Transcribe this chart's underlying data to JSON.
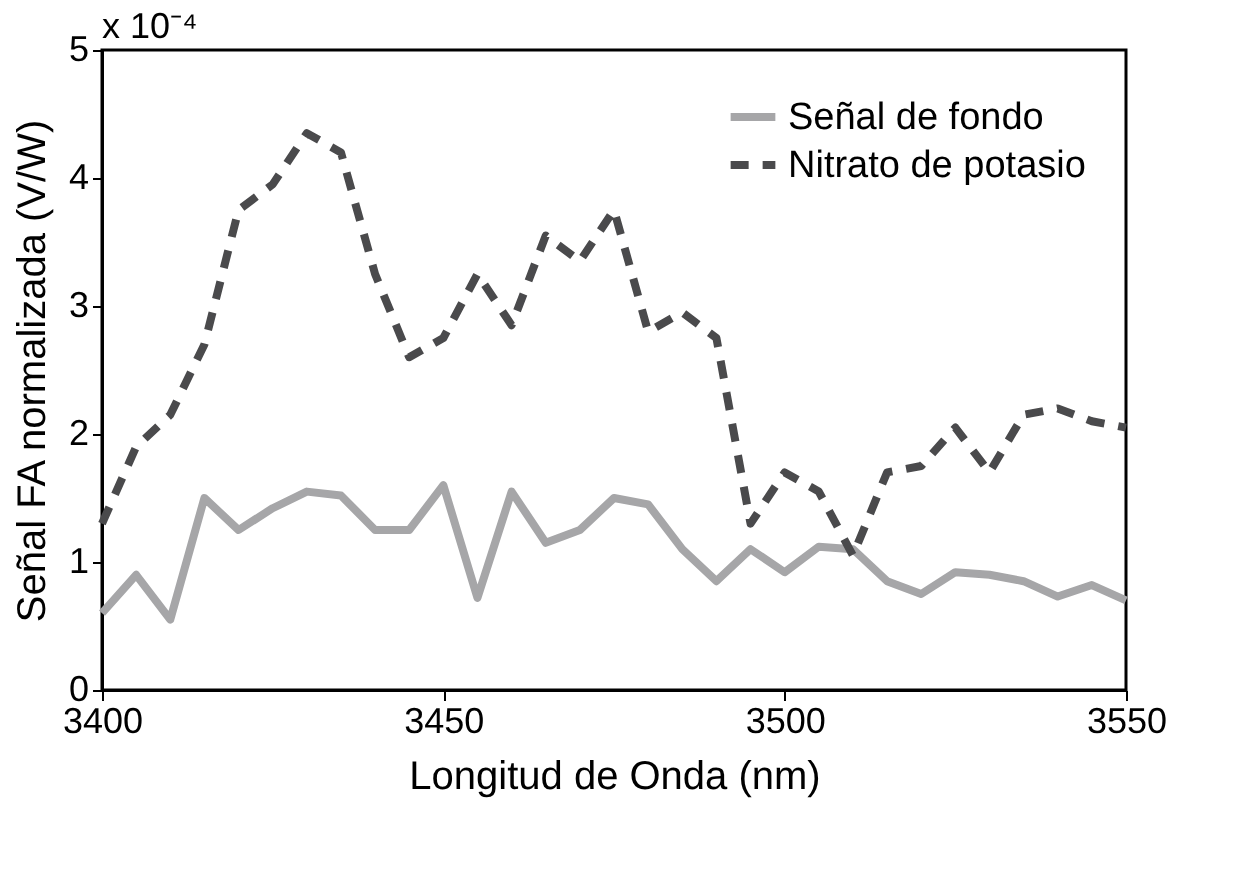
{
  "chart_data": {
    "type": "line",
    "xlabel": "Longitud de Onda (nm)",
    "ylabel": "Señal FA normalizada (V/W)",
    "annotations": [
      "x 10⁻⁴"
    ],
    "x": [
      3400,
      3405,
      3410,
      3415,
      3420,
      3425,
      3430,
      3435,
      3440,
      3445,
      3450,
      3455,
      3460,
      3465,
      3470,
      3475,
      3480,
      3485,
      3490,
      3495,
      3500,
      3505,
      3510,
      3515,
      3520,
      3525,
      3530,
      3535,
      3540,
      3545,
      3550
    ],
    "series": [
      {
        "name": "Señal de fondo",
        "color": "#a6a6a8",
        "line_style": "solid",
        "values": [
          0.6,
          0.9,
          0.55,
          1.5,
          1.25,
          1.42,
          1.55,
          1.52,
          1.25,
          1.25,
          1.6,
          0.72,
          1.55,
          1.15,
          1.25,
          1.5,
          1.45,
          1.1,
          0.85,
          1.1,
          0.92,
          1.12,
          1.1,
          0.85,
          0.75,
          0.92,
          0.9,
          0.85,
          0.73,
          0.82,
          0.7
        ]
      },
      {
        "name": "Nitrato de potasio",
        "color": "#4a4a4c",
        "line_style": "dashed",
        "values": [
          1.3,
          1.9,
          2.15,
          2.7,
          3.75,
          3.95,
          4.35,
          4.2,
          3.25,
          2.6,
          2.75,
          3.25,
          2.85,
          3.55,
          3.35,
          3.75,
          2.8,
          2.95,
          2.75,
          1.3,
          1.7,
          1.55,
          1.05,
          1.7,
          1.75,
          2.05,
          1.7,
          2.15,
          2.2,
          2.1,
          2.05
        ]
      }
    ],
    "xlim": [
      3400,
      3550
    ],
    "xticks": [
      3400,
      3450,
      3500,
      3550
    ],
    "ylim": [
      0,
      5
    ],
    "yticks": [
      0,
      1,
      2,
      3,
      4,
      5
    ],
    "grid": false,
    "legend": "top right"
  }
}
